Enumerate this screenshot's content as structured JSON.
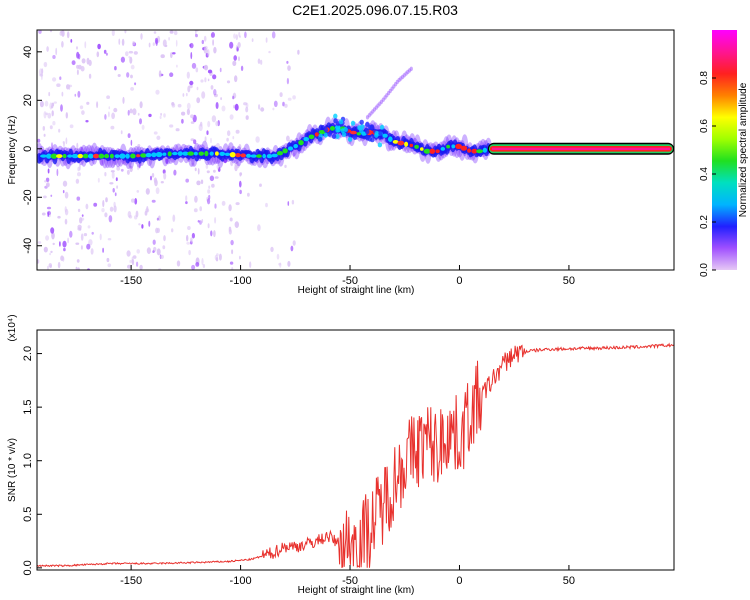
{
  "page": {
    "title": "C2E1.2025.096.07.15.R03"
  },
  "chart_data": [
    {
      "type": "heatmap",
      "xlabel": "Height of straight line (km)",
      "ylabel": "Frequency (Hz)",
      "xlim": [
        -193,
        98
      ],
      "ylim": [
        -50,
        49
      ],
      "xticks": [
        -150,
        -100,
        -50,
        0,
        50
      ],
      "yticks": [
        -40,
        -20,
        0,
        20,
        40
      ],
      "ridge": {
        "x": [
          -190,
          -170,
          -150,
          -130,
          -110,
          -95,
          -85,
          -80,
          -75,
          -70,
          -65,
          -60,
          -55,
          -50,
          -45,
          -40,
          -35,
          -30,
          -25,
          -20,
          -15,
          -10,
          -5,
          0,
          5,
          10,
          14,
          98
        ],
        "frequency": [
          -3,
          -3,
          -3,
          -2,
          -2,
          -3,
          -3,
          -1,
          1,
          4,
          6,
          8,
          9,
          7,
          6,
          7,
          6,
          3,
          2,
          1,
          -1,
          -1,
          1,
          1,
          -1,
          -1,
          0,
          0
        ]
      },
      "branch": {
        "x": [
          -42,
          -35,
          -28,
          -22
        ],
        "frequency": [
          13,
          20,
          28,
          33
        ]
      },
      "colorbar": {
        "label": "Normalized spectral amplitude",
        "range": [
          0,
          1
        ],
        "ticks": [
          "0.0",
          "0.2",
          "0.4",
          "0.6",
          "0.8"
        ],
        "colors": [
          "#e6c8f5",
          "#a050ff",
          "#2020ff",
          "#00b4ff",
          "#00e0c0",
          "#20e020",
          "#a0ff00",
          "#ffff00",
          "#ff8000",
          "#ff2020",
          "#ff1493",
          "#ff00ff"
        ]
      }
    },
    {
      "type": "line",
      "xlabel": "Height of straight line (km)",
      "ylabel": "SNR (10 * v/v)",
      "yscale_label": "(x10⁴)",
      "xlim": [
        -193,
        98
      ],
      "ylim": [
        -0.02,
        2.22
      ],
      "xticks": [
        -150,
        -100,
        -50,
        0,
        50
      ],
      "yticks": [
        "0.0",
        "0.5",
        "1.0",
        "1.5",
        "2.0"
      ],
      "color": "#e8312d",
      "series": [
        {
          "x": [
            -193,
            -180,
            -160,
            -140,
            -120,
            -105,
            -95,
            -85,
            -80,
            -75,
            -70,
            -65,
            -60,
            -55,
            -50,
            -45,
            -40,
            -35,
            -30,
            -25,
            -20,
            -15,
            -10,
            -5,
            0,
            5,
            10,
            15,
            20,
            25,
            30,
            40,
            60,
            80,
            98
          ],
          "values": [
            0.02,
            0.02,
            0.04,
            0.04,
            0.05,
            0.06,
            0.08,
            0.14,
            0.2,
            0.2,
            0.22,
            0.25,
            0.3,
            0.22,
            0.22,
            0.28,
            0.4,
            0.6,
            0.8,
            1.0,
            1.1,
            1.2,
            1.1,
            1.3,
            1.2,
            1.45,
            1.6,
            1.75,
            1.9,
            2.0,
            2.02,
            2.04,
            2.05,
            2.06,
            2.08
          ]
        }
      ]
    }
  ]
}
